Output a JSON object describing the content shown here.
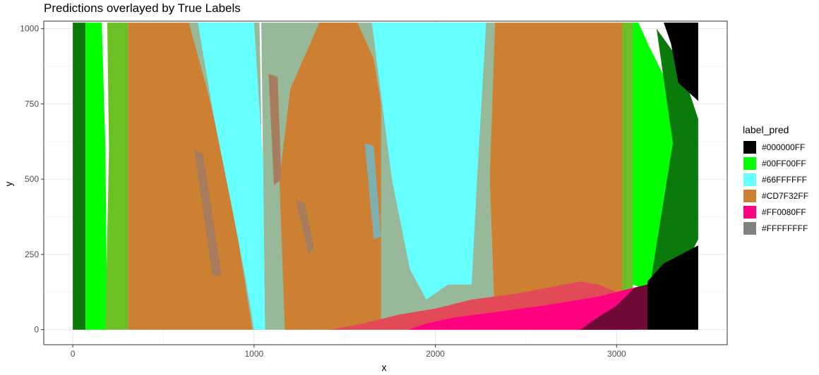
{
  "chart_data": {
    "type": "heatmap",
    "title": "Predictions overlayed by True Labels",
    "xlabel": "x",
    "ylabel": "y",
    "xlim": [
      -160,
      3610
    ],
    "ylim": [
      -50,
      1025
    ],
    "xticks": [
      0,
      1000,
      2000,
      3000
    ],
    "yticks": [
      0,
      250,
      500,
      750,
      1000
    ],
    "x_tick_labels": [
      "0",
      "1000",
      "2000",
      "3000"
    ],
    "y_tick_labels": [
      "0",
      "250",
      "500",
      "750",
      "1000"
    ],
    "grid": true,
    "legend_title": "label_pred",
    "legend_position": "right",
    "legend": [
      {
        "label": "#000000FF",
        "color": "#000000"
      },
      {
        "label": "#00FF00FF",
        "color": "#00ff00"
      },
      {
        "label": "#66FFFFFF",
        "color": "#66ffff"
      },
      {
        "label": "#CD7F32FF",
        "color": "#cd7f32"
      },
      {
        "label": "#FF0080FF",
        "color": "#ff0080"
      },
      {
        "label": "#FFFFFFFF",
        "color": "#808080"
      }
    ],
    "regions": [
      {
        "label": "#00FF00FF",
        "color": "#0a7a0a",
        "polygon": [
          [
            0,
            0
          ],
          [
            70,
            0
          ],
          [
            70,
            1020
          ],
          [
            0,
            1020
          ]
        ]
      },
      {
        "label": "#00FF00FF",
        "color": "#00ff00",
        "polygon": [
          [
            70,
            0
          ],
          [
            190,
            0
          ],
          [
            180,
            600
          ],
          [
            160,
            1020
          ],
          [
            70,
            1020
          ]
        ]
      },
      {
        "label": "#00FF00FF",
        "color": "#6cbf24",
        "polygon": [
          [
            180,
            0
          ],
          [
            305,
            0
          ],
          [
            305,
            1020
          ],
          [
            190,
            1020
          ],
          [
            200,
            600
          ]
        ]
      },
      {
        "label": "#CD7F32FF",
        "color": "#cd7f32",
        "polygon": [
          [
            305,
            0
          ],
          [
            1025,
            0
          ],
          [
            1025,
            1020
          ],
          [
            305,
            1020
          ]
        ]
      },
      {
        "label": "#66FFFFFF",
        "color": "#98b89a",
        "polygon": [
          [
            640,
            1020
          ],
          [
            1030,
            1020
          ],
          [
            1060,
            0
          ],
          [
            990,
            0
          ],
          [
            860,
            500
          ],
          [
            740,
            800
          ]
        ]
      },
      {
        "label": "#66FFFFFF",
        "color": "#98b89a",
        "polygon": [
          [
            1060,
            0
          ],
          [
            1700,
            0
          ],
          [
            1700,
            1020
          ],
          [
            1040,
            1020
          ]
        ]
      },
      {
        "label": "#CD7F32FF",
        "color": "#cd7f32",
        "polygon": [
          [
            1170,
            0
          ],
          [
            1720,
            0
          ],
          [
            1740,
            600
          ],
          [
            1660,
            900
          ],
          [
            1570,
            1020
          ],
          [
            1360,
            1020
          ],
          [
            1200,
            800
          ],
          [
            1140,
            500
          ]
        ]
      },
      {
        "label": "#66FFFFFF",
        "color": "#66ffff",
        "polygon": [
          [
            690,
            1020
          ],
          [
            1000,
            1020
          ],
          [
            1050,
            550
          ],
          [
            1060,
            0
          ],
          [
            1000,
            0
          ],
          [
            950,
            180
          ],
          [
            880,
            400
          ],
          [
            780,
            700
          ]
        ]
      },
      {
        "label": "#66FFFFFF",
        "color": "#98b89a",
        "polygon": [
          [
            1700,
            0
          ],
          [
            2330,
            0
          ],
          [
            2300,
            500
          ],
          [
            2340,
            1020
          ],
          [
            1700,
            1020
          ]
        ]
      },
      {
        "label": "#66FFFFFF",
        "color": "#66ffff",
        "polygon": [
          [
            1650,
            1020
          ],
          [
            2280,
            1020
          ],
          [
            2230,
            500
          ],
          [
            2200,
            150
          ],
          [
            2070,
            150
          ],
          [
            1950,
            100
          ],
          [
            1860,
            200
          ],
          [
            1760,
            500
          ]
        ]
      },
      {
        "label": "#CD7F32FF",
        "color": "#cd7f32",
        "polygon": [
          [
            2330,
            0
          ],
          [
            3050,
            0
          ],
          [
            3050,
            1020
          ],
          [
            2330,
            1020
          ],
          [
            2300,
            500
          ]
        ]
      },
      {
        "label": "#00FF00FF",
        "color": "#6cbf24",
        "polygon": [
          [
            3030,
            0
          ],
          [
            3090,
            0
          ],
          [
            3090,
            1020
          ],
          [
            3030,
            1020
          ]
        ]
      },
      {
        "label": "#00FF00FF",
        "color": "#00ff00",
        "polygon": [
          [
            3090,
            150
          ],
          [
            3180,
            130
          ],
          [
            3310,
            360
          ],
          [
            3380,
            620
          ],
          [
            3280,
            820
          ],
          [
            3180,
            940
          ],
          [
            3120,
            1020
          ],
          [
            3090,
            1020
          ]
        ]
      },
      {
        "label": "#00FF00FF",
        "color": "#0a7a0a",
        "polygon": [
          [
            3180,
            130
          ],
          [
            3390,
            230
          ],
          [
            3450,
            300
          ],
          [
            3450,
            700
          ],
          [
            3340,
            900
          ],
          [
            3220,
            1000
          ],
          [
            3310,
            620
          ]
        ]
      },
      {
        "label": "#000000FF",
        "color": "#000000",
        "polygon": [
          [
            3170,
            0
          ],
          [
            3450,
            0
          ],
          [
            3450,
            280
          ],
          [
            3260,
            220
          ],
          [
            3170,
            160
          ]
        ]
      },
      {
        "label": "#000000FF",
        "color": "#000000",
        "polygon": [
          [
            3340,
            820
          ],
          [
            3450,
            760
          ],
          [
            3450,
            1020
          ],
          [
            3260,
            1020
          ],
          [
            3300,
            950
          ]
        ]
      },
      {
        "label": "#FF0080FF",
        "color": "#e24a58",
        "polygon": [
          [
            1420,
            0
          ],
          [
            3000,
            0
          ],
          [
            3080,
            80
          ],
          [
            3020,
            120
          ],
          [
            2900,
            150
          ],
          [
            2800,
            160
          ],
          [
            2450,
            120
          ],
          [
            2200,
            100
          ],
          [
            2000,
            70
          ],
          [
            1800,
            50
          ],
          [
            1600,
            20
          ]
        ]
      },
      {
        "label": "#FF0080FF",
        "color": "#ff0080",
        "polygon": [
          [
            1850,
            0
          ],
          [
            3100,
            0
          ],
          [
            3100,
            140
          ],
          [
            2900,
            110
          ],
          [
            2600,
            80
          ],
          [
            2350,
            60
          ],
          [
            2100,
            40
          ],
          [
            1950,
            20
          ]
        ]
      },
      {
        "label": "#FF0080FF",
        "color": "#6e0a35",
        "polygon": [
          [
            2800,
            0
          ],
          [
            3170,
            0
          ],
          [
            3170,
            150
          ],
          [
            3100,
            140
          ],
          [
            3000,
            80
          ],
          [
            2870,
            30
          ]
        ]
      },
      {
        "label": "#FFFFFFFF",
        "color": "#a67c5c",
        "polygon": [
          [
            670,
            600
          ],
          [
            720,
            580
          ],
          [
            820,
            180
          ],
          [
            770,
            180
          ]
        ]
      },
      {
        "label": "#FFFFFFFF",
        "color": "#a67c5c",
        "polygon": [
          [
            1080,
            850
          ],
          [
            1130,
            840
          ],
          [
            1150,
            500
          ],
          [
            1110,
            480
          ]
        ]
      },
      {
        "label": "#FFFFFFFF",
        "color": "#a67c5c",
        "polygon": [
          [
            1230,
            430
          ],
          [
            1280,
            420
          ],
          [
            1330,
            270
          ],
          [
            1300,
            250
          ]
        ]
      },
      {
        "label": "#FFFFFFFF",
        "color": "#7fb0b0",
        "polygon": [
          [
            1610,
            620
          ],
          [
            1660,
            610
          ],
          [
            1700,
            310
          ],
          [
            1660,
            300
          ]
        ]
      }
    ]
  }
}
